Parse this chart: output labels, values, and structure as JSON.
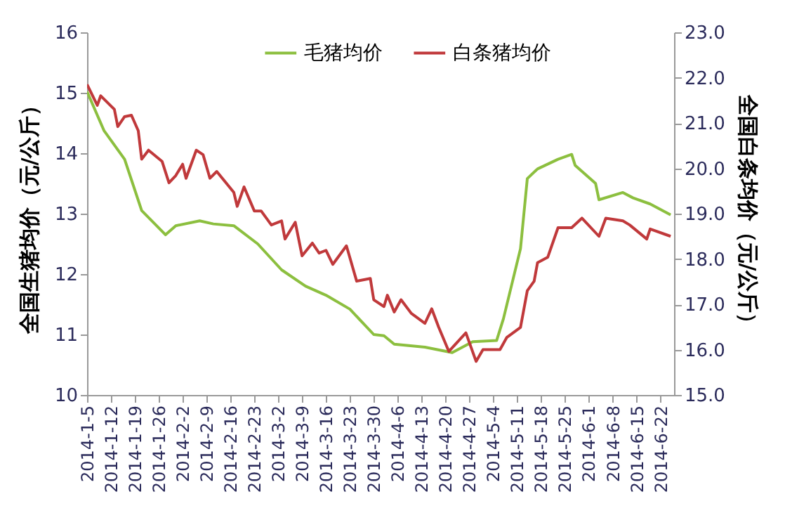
{
  "chart_data": {
    "type": "line",
    "ylabel": "全国生猪均价（元/公斤）",
    "y2label": "全国白条均价（元/公斤）",
    "xlim": [
      "2014-01-05",
      "2014-06-26"
    ],
    "xticks": [
      {
        "value": "2014-01-05",
        "label": "2014-1-5"
      },
      {
        "value": "2014-01-12",
        "label": "2014-1-12"
      },
      {
        "value": "2014-01-19",
        "label": "2014-1-19"
      },
      {
        "value": "2014-01-26",
        "label": "2014-1-26"
      },
      {
        "value": "2014-02-02",
        "label": "2014-2-2"
      },
      {
        "value": "2014-02-09",
        "label": "2014-2-9"
      },
      {
        "value": "2014-02-16",
        "label": "2014-2-16"
      },
      {
        "value": "2014-02-23",
        "label": "2014-2-23"
      },
      {
        "value": "2014-03-02",
        "label": "2014-3-2"
      },
      {
        "value": "2014-03-09",
        "label": "2014-3-9"
      },
      {
        "value": "2014-03-16",
        "label": "2014-3-16"
      },
      {
        "value": "2014-03-23",
        "label": "2014-3-23"
      },
      {
        "value": "2014-03-30",
        "label": "2014-3-30"
      },
      {
        "value": "2014-04-06",
        "label": "2014-4-6"
      },
      {
        "value": "2014-04-13",
        "label": "2014-4-13"
      },
      {
        "value": "2014-04-20",
        "label": "2014-4-20"
      },
      {
        "value": "2014-04-27",
        "label": "2014-4-27"
      },
      {
        "value": "2014-05-04",
        "label": "2014-5-4"
      },
      {
        "value": "2014-05-11",
        "label": "2014-5-11"
      },
      {
        "value": "2014-05-18",
        "label": "2014-5-18"
      },
      {
        "value": "2014-05-25",
        "label": "2014-5-25"
      },
      {
        "value": "2014-06-01",
        "label": "2014-6-1"
      },
      {
        "value": "2014-06-08",
        "label": "2014-6-8"
      },
      {
        "value": "2014-06-15",
        "label": "2014-6-15"
      },
      {
        "value": "2014-06-22",
        "label": "2014-6-22"
      }
    ],
    "ylim": [
      10,
      16
    ],
    "yticks": [
      10,
      11,
      12,
      13,
      14,
      15,
      16
    ],
    "y2lim": [
      15,
      23
    ],
    "y2ticks": [
      {
        "value": 15,
        "label": "15.0"
      },
      {
        "value": 16,
        "label": "16.0"
      },
      {
        "value": 17,
        "label": "17.0"
      },
      {
        "value": 18,
        "label": "18.0"
      },
      {
        "value": 19,
        "label": "19.0"
      },
      {
        "value": 20,
        "label": "20.0"
      },
      {
        "value": 21,
        "label": "21.0"
      },
      {
        "value": 22,
        "label": "22.0"
      },
      {
        "value": 23,
        "label": "23.0"
      }
    ],
    "grid": false,
    "legend": "top",
    "line_style": "solid",
    "series": [
      {
        "name": "毛猪均价",
        "color": "#8cbf3f",
        "x": [
          "2014-01-05",
          "2014-01-10",
          "2014-01-16",
          "2014-01-21",
          "2014-01-28",
          "2014-01-31",
          "2014-02-07",
          "2014-02-11",
          "2014-02-17",
          "2014-02-24",
          "2014-03-03",
          "2014-03-10",
          "2014-03-16",
          "2014-03-23",
          "2014-03-30",
          "2014-04-02",
          "2014-04-05",
          "2014-04-14",
          "2014-04-22",
          "2014-04-28",
          "2014-05-05",
          "2014-05-07",
          "2014-05-12",
          "2014-05-14",
          "2014-05-17",
          "2014-05-23",
          "2014-05-27",
          "2014-05-28",
          "2014-06-03",
          "2014-06-04",
          "2014-06-11",
          "2014-06-14",
          "2014-06-19",
          "2014-06-25"
        ],
        "values": [
          15.02,
          14.37,
          13.9,
          13.05,
          12.65,
          12.8,
          12.88,
          12.83,
          12.8,
          12.5,
          12.07,
          11.8,
          11.65,
          11.42,
          11.0,
          10.98,
          10.84,
          10.79,
          10.7,
          10.88,
          10.9,
          11.26,
          12.42,
          13.58,
          13.74,
          13.9,
          13.98,
          13.8,
          13.5,
          13.23,
          13.35,
          13.26,
          13.16,
          12.98
        ]
      },
      {
        "name": "白条猪均价",
        "color": "#c0393b",
        "axis": "y2",
        "x": [
          "2014-01-05",
          "2014-01-08",
          "2014-01-09",
          "2014-01-13",
          "2014-01-14",
          "2014-01-16",
          "2014-01-18",
          "2014-01-20",
          "2014-01-21",
          "2014-01-23",
          "2014-01-27",
          "2014-01-29",
          "2014-01-31",
          "2014-02-02",
          "2014-02-03",
          "2014-02-06",
          "2014-02-08",
          "2014-02-10",
          "2014-02-12",
          "2014-02-17",
          "2014-02-18",
          "2014-02-20",
          "2014-02-23",
          "2014-02-25",
          "2014-02-28",
          "2014-03-03",
          "2014-03-04",
          "2014-03-07",
          "2014-03-09",
          "2014-03-12",
          "2014-03-14",
          "2014-03-16",
          "2014-03-18",
          "2014-03-22",
          "2014-03-25",
          "2014-03-29",
          "2014-03-30",
          "2014-04-02",
          "2014-04-03",
          "2014-04-05",
          "2014-04-07",
          "2014-04-10",
          "2014-04-14",
          "2014-04-16",
          "2014-04-18",
          "2014-04-21",
          "2014-04-26",
          "2014-04-29",
          "2014-05-01",
          "2014-05-06",
          "2014-05-08",
          "2014-05-12",
          "2014-05-14",
          "2014-05-16",
          "2014-05-17",
          "2014-05-20",
          "2014-05-23",
          "2014-05-27",
          "2014-05-30",
          "2014-06-04",
          "2014-06-06",
          "2014-06-11",
          "2014-06-13",
          "2014-06-18",
          "2014-06-19",
          "2014-06-25"
        ],
        "values": [
          21.85,
          21.39,
          21.6,
          21.3,
          20.92,
          21.14,
          21.17,
          20.83,
          20.2,
          20.4,
          20.15,
          19.68,
          19.84,
          20.09,
          19.78,
          20.4,
          20.3,
          19.78,
          19.93,
          19.47,
          19.16,
          19.59,
          19.06,
          19.06,
          18.75,
          18.84,
          18.44,
          18.81,
          18.07,
          18.35,
          18.13,
          18.19,
          17.88,
          18.29,
          17.51,
          17.57,
          17.1,
          16.95,
          17.2,
          16.83,
          17.1,
          16.8,
          16.58,
          16.9,
          16.5,
          15.96,
          16.37,
          15.74,
          16.0,
          16.0,
          16.27,
          16.49,
          17.3,
          17.51,
          17.92,
          18.04,
          18.69,
          18.69,
          18.9,
          18.5,
          18.9,
          18.84,
          18.75,
          18.44,
          18.66,
          18.5
        ]
      }
    ]
  }
}
